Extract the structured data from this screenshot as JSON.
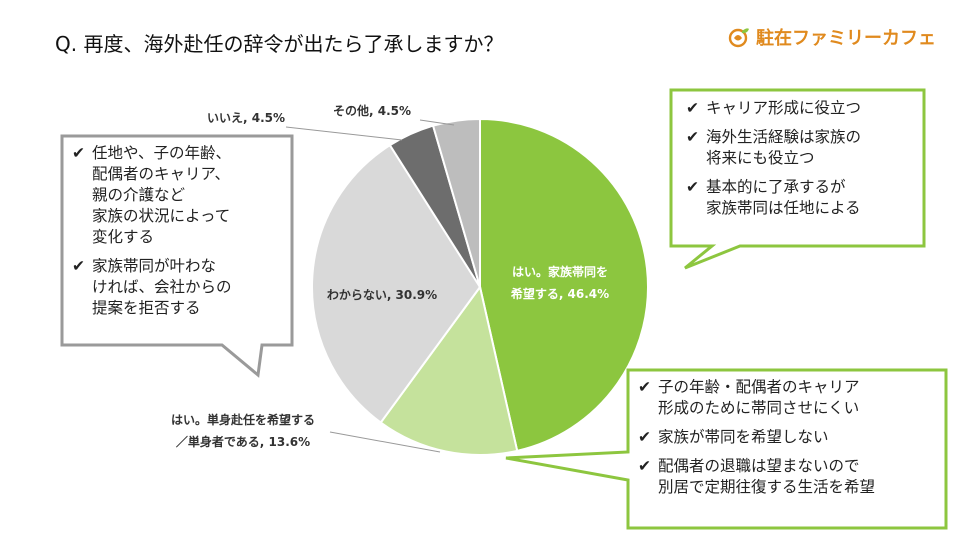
{
  "question": "Q. 再度、海外赴任の辞令が出たら了承しますか？",
  "brand": {
    "name": "駐在ファミリーカフェ",
    "icon": "globe-leaf-icon",
    "color": "#e08a1e"
  },
  "colors": {
    "green_box": "#8dc63f",
    "gray_box": "#9a9a9a"
  },
  "chart_data": {
    "type": "pie",
    "start": "12 o'clock",
    "direction": "clockwise",
    "slices": [
      {
        "label_lines": [
          "はい。家族帯同を",
          "希望する, 46.4%"
        ],
        "value": 46.4,
        "color": "#8cc63f"
      },
      {
        "label_lines": [
          "はい。単身赴任を希望する",
          "／単身者である, 13.6%"
        ],
        "value": 13.6,
        "color": "#c5e29c"
      },
      {
        "label_lines": [
          "わからない, 30.9%"
        ],
        "value": 30.9,
        "color": "#d9d9d9"
      },
      {
        "label_lines": [
          "いいえ, 4.5%"
        ],
        "value": 4.5,
        "color": "#6d6d6d"
      },
      {
        "label_lines": [
          "その他, 4.5%"
        ],
        "value": 4.5,
        "color": "#bdbdbd"
      }
    ]
  },
  "callouts": {
    "left": {
      "items": [
        "任地や、子の年齢、\n配偶者のキャリア、\n親の介護など\n家族の状況によって\n変化する",
        "家族帯同が叶わな\nければ、会社からの\n提案を拒否する"
      ]
    },
    "right_top": {
      "items": [
        "キャリア形成に役立つ",
        "海外生活経験は家族の\n将来にも役立つ",
        "基本的に了承するが\n家族帯同は任地による"
      ]
    },
    "right_bottom": {
      "items": [
        "子の年齢・配偶者のキャリア\n形成のために帯同させにくい",
        "家族が帯同を希望しない",
        "配偶者の退職は望まないので\n別居で定期往復する生活を希望"
      ]
    },
    "check_mark": "✔"
  }
}
